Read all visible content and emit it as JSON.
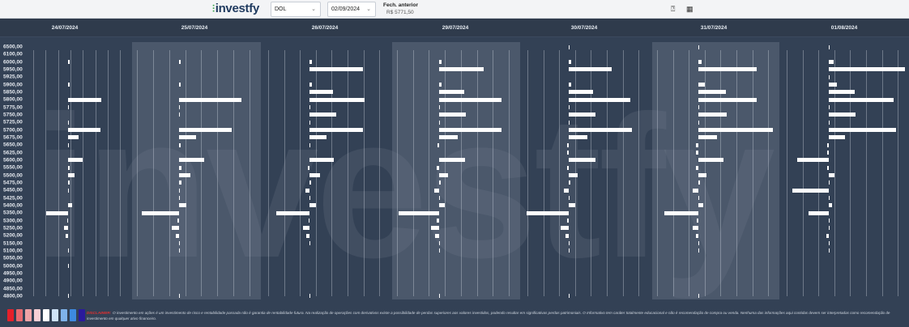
{
  "header": {
    "logo": "investfy",
    "asset_select": "DOL",
    "date_select": "02/09/2024",
    "prev_close_label": "Fech. anterior",
    "prev_close_value": "R$ 5771,50",
    "icons": [
      "help-icon",
      "grid-icon"
    ]
  },
  "watermark": "investfy",
  "chart_data": {
    "type": "bar",
    "orientation": "horizontal",
    "title": "",
    "ylabel": "Preço",
    "price_levels": [
      "6500,00",
      "6100,00",
      "6000,00",
      "5950,00",
      "5925,00",
      "5900,00",
      "5850,00",
      "5800,00",
      "5775,00",
      "5750,00",
      "5725,00",
      "5700,00",
      "5675,00",
      "5650,00",
      "5625,00",
      "5600,00",
      "5550,00",
      "5500,00",
      "5475,00",
      "5450,00",
      "5425,00",
      "5400,00",
      "5350,00",
      "5300,00",
      "5250,00",
      "5200,00",
      "5150,00",
      "5100,00",
      "5050,00",
      "5000,00",
      "4950,00",
      "4900,00",
      "4850,00",
      "4800,00"
    ],
    "value_units": "relative (positive right / negative left)",
    "grid": true,
    "series": [
      {
        "name": "24/07/2024",
        "shaded": false,
        "values": [
          0,
          0,
          2,
          0,
          0,
          2,
          0,
          41,
          0.5,
          0,
          0.5,
          40,
          13,
          0.5,
          0,
          18,
          2,
          8,
          2,
          0.5,
          0,
          5,
          -27,
          -1,
          -5,
          -3,
          0,
          0.5,
          0,
          0.5,
          0,
          0,
          0,
          0.5
        ]
      },
      {
        "name": "25/07/2024",
        "shaded": true,
        "values": [
          0,
          0,
          2,
          0,
          0,
          2,
          0,
          77,
          0.5,
          0.5,
          0,
          65,
          21,
          2,
          0,
          31,
          3,
          14,
          3,
          0.5,
          0.5,
          9,
          -46,
          -2,
          -9,
          -4,
          0.5,
          0.5,
          0,
          0,
          0,
          0,
          0,
          0.5
        ]
      },
      {
        "name": "26/07/2024",
        "shaded": false,
        "values": [
          0,
          0,
          3,
          66,
          0,
          3,
          29,
          68,
          0.5,
          33,
          0.5,
          66,
          21,
          1,
          0,
          30,
          -2,
          13,
          2,
          -5,
          0.5,
          8,
          -41,
          -1,
          -8,
          -4,
          0.5,
          0,
          0,
          0,
          0,
          0,
          0,
          0.5
        ]
      },
      {
        "name": "29/07/2024",
        "shaded": true,
        "values": [
          0,
          0,
          3,
          55,
          0,
          3,
          31,
          77,
          0.5,
          33,
          0.5,
          77,
          23,
          -2,
          0,
          32,
          -3,
          11,
          2,
          -6,
          0.5,
          7,
          -50,
          -3,
          -10,
          -5,
          0.5,
          0.5,
          0,
          0,
          0,
          0,
          0,
          0.5
        ]
      },
      {
        "name": "30/07/2024",
        "shaded": false,
        "values": [
          0.5,
          0,
          3,
          53,
          0,
          3,
          30,
          76,
          0.5,
          33,
          0.5,
          78,
          23,
          -2,
          -2,
          33,
          -2,
          11,
          2,
          -6,
          0.5,
          8,
          -52,
          -2,
          -10,
          -4,
          0.5,
          0.5,
          0,
          0,
          0,
          0,
          0,
          0.5
        ]
      },
      {
        "name": "31/07/2024",
        "shaded": true,
        "values": [
          0.5,
          0,
          4,
          72,
          0,
          8,
          34,
          72,
          0.5,
          35,
          0.5,
          92,
          23,
          -3,
          -3,
          31,
          -3,
          10,
          2,
          -7,
          0.5,
          6,
          -42,
          -2,
          -7,
          -3,
          0.5,
          0.5,
          0,
          0,
          0,
          0,
          0,
          0.5
        ]
      },
      {
        "name": "01/08/2024",
        "shaded": false,
        "values": [
          0.5,
          0,
          6,
          94,
          0.5,
          10,
          32,
          80,
          0.5,
          33,
          0.5,
          83,
          20,
          -2,
          -2,
          -39,
          -2,
          7,
          1,
          -45,
          0.5,
          4,
          -25,
          0.5,
          0.5,
          -3,
          0.5,
          0.5,
          0,
          0,
          0,
          0,
          0,
          0
        ]
      }
    ]
  },
  "legend": {
    "colors": [
      "#e5202a",
      "#e86a6f",
      "#f0a3a6",
      "#f8cfd5",
      "#ffffff",
      "#cfe3f7",
      "#7fb3ea",
      "#3d8ae0",
      "#2a1a9c"
    ]
  },
  "footer": {
    "disclaimer_label": "DISCLAIMER:",
    "disclaimer_text": "O investimento em ações é um investimento de risco e rentabilidade passada não é garantia de rentabilidade futura. Na realização de operações com derivativos existe a possibilidade de perdas superiores aos valores investidos, podendo resultar em significativas perdas patrimoniais. O Informativo tem caráter totalmente educacional e não é recomendação de compra ou venda. Nenhuma das informações aqui contidas devem ser interpretadas como recomendação de investimento em qualquer ativo financeiro."
  }
}
